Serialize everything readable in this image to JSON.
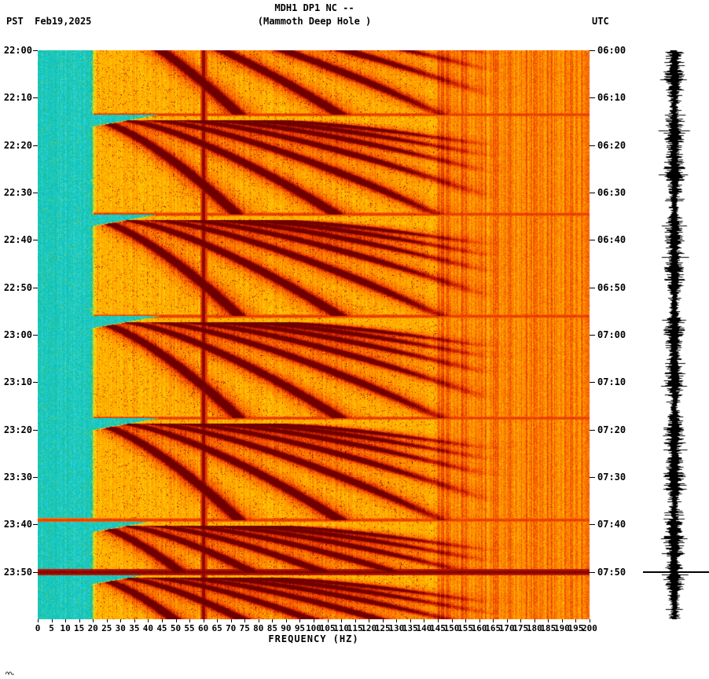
{
  "header": {
    "title": "MDH1 DP1 NC --",
    "subtitle": "(Mammoth Deep Hole )",
    "tz_left": "PST",
    "date": "Feb19,2025",
    "tz_right": "UTC"
  },
  "chart_data": {
    "type": "heatmap",
    "title": "MDH1 DP1 NC --",
    "subtitle": "(Mammoth Deep Hole )",
    "station": "MDH1 DP1 NC",
    "site_name": "Mammoth Deep Hole",
    "xlabel": "FREQUENCY (HZ)",
    "freq_range_hz": [
      0,
      200
    ],
    "x_tick_step_hz": 5,
    "x_tick_labels": [
      "0",
      "5",
      "10",
      "15",
      "20",
      "25",
      "30",
      "35",
      "40",
      "45",
      "50",
      "55",
      "60",
      "65",
      "70",
      "75",
      "80",
      "85",
      "90",
      "95",
      "100",
      "105",
      "110",
      "115",
      "120",
      "125",
      "130",
      "135",
      "140",
      "145",
      "150",
      "155",
      "160",
      "165",
      "170",
      "175",
      "180",
      "185",
      "190",
      "195",
      "200"
    ],
    "time_span_minutes": 120,
    "time_tick_step_minutes": 10,
    "left_time_labels": [
      "22:00",
      "22:10",
      "22:20",
      "22:30",
      "22:40",
      "22:50",
      "23:00",
      "23:10",
      "23:20",
      "23:30",
      "23:40",
      "23:50"
    ],
    "right_time_labels": [
      "06:00",
      "06:10",
      "06:20",
      "06:30",
      "06:40",
      "06:50",
      "07:00",
      "07:10",
      "07:20",
      "07:30",
      "07:40",
      "07:50"
    ],
    "timezone_left": "PST",
    "timezone_right": "UTC",
    "date": "Feb19,2025",
    "legend_position": "none",
    "grid": false,
    "features": {
      "mains_hum_hz": 60,
      "low_band_cutoff_hz": 20,
      "cycle_starts_min": [
        -8,
        13.5,
        34.5,
        56,
        77.5,
        99,
        110
      ],
      "cycle_duration_min": 21.5,
      "harmonic_ratios": [
        1,
        1.5,
        2,
        2.5,
        3,
        3.5,
        4
      ],
      "gliding_harmonics_base_hz": 21,
      "gliding_harmonics_rise_hz": 52,
      "reset_lines": [
        {
          "minute": 13.5,
          "full_width": false,
          "strong": false
        },
        {
          "minute": 34.5,
          "full_width": false,
          "strong": false
        },
        {
          "minute": 56,
          "full_width": false,
          "strong": false
        },
        {
          "minute": 77.5,
          "full_width": false,
          "strong": false
        },
        {
          "minute": 99,
          "full_width": true,
          "strong": false
        },
        {
          "minute": 110,
          "full_width": true,
          "strong": true
        }
      ],
      "trace_marker_minute": 110
    },
    "palette": [
      {
        "v": 0.0,
        "color": "#c8ffff"
      },
      {
        "v": 0.1,
        "color": "#66e8e8"
      },
      {
        "v": 0.22,
        "color": "#10c8c8"
      },
      {
        "v": 0.32,
        "color": "#20b890"
      },
      {
        "v": 0.4,
        "color": "#7cd24a"
      },
      {
        "v": 0.48,
        "color": "#e6e62e"
      },
      {
        "v": 0.58,
        "color": "#ffc800"
      },
      {
        "v": 0.68,
        "color": "#ff8c00"
      },
      {
        "v": 0.78,
        "color": "#f04800"
      },
      {
        "v": 0.88,
        "color": "#c01800"
      },
      {
        "v": 1.0,
        "color": "#700000"
      }
    ],
    "trace_color": "#000000"
  }
}
